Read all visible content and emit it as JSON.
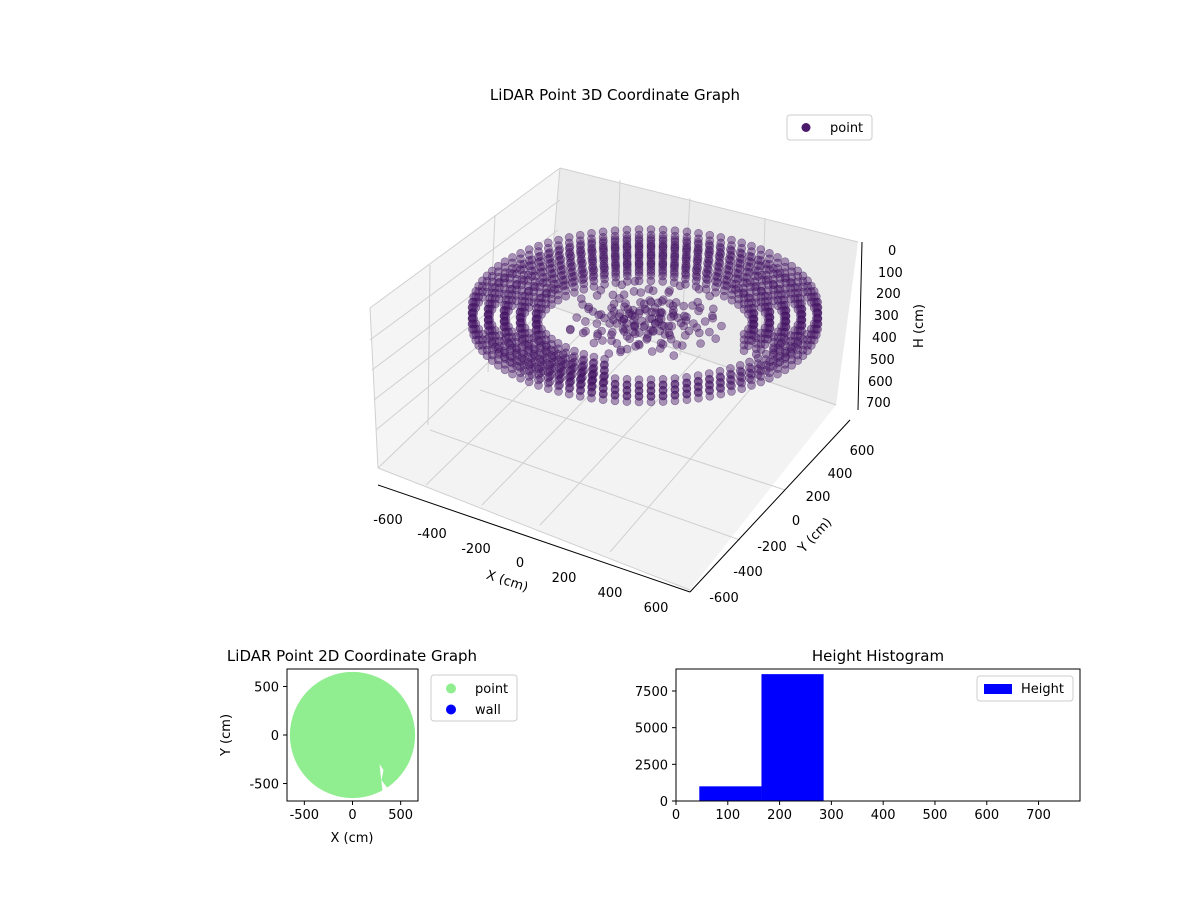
{
  "chart_data": [
    {
      "type": "scatter",
      "title": "LiDAR Point 3D Coordinate Graph",
      "projection": "3d",
      "xlabel": "X (cm)",
      "ylabel": "Y (cm)",
      "zlabel": "H (cm)",
      "x_ticks": [
        -600,
        -400,
        -200,
        0,
        200,
        400,
        600
      ],
      "y_ticks": [
        -600,
        -400,
        -200,
        0,
        200,
        400,
        600
      ],
      "z_ticks": [
        0,
        100,
        200,
        300,
        400,
        500,
        600,
        700
      ],
      "xlim": [
        -650,
        650
      ],
      "ylim": [
        -650,
        650
      ],
      "zlim": [
        760,
        0
      ],
      "z_inverted": true,
      "grid": true,
      "legend": {
        "position": "top-right",
        "entries": [
          {
            "label": "point",
            "color": "#4b1a6b"
          }
        ]
      },
      "series": [
        {
          "name": "point",
          "color": "#4b1a6b",
          "description_of_shape": "ring-shaped cloud of points (radius ~650 cm) at heights ~180-300 cm with a denser central cluster"
        }
      ],
      "sample_points": [
        {
          "x": 650,
          "y": 0,
          "h": 200
        },
        {
          "x": 0,
          "y": 650,
          "h": 200
        },
        {
          "x": -650,
          "y": 0,
          "h": 200
        },
        {
          "x": 0,
          "y": -650,
          "h": 200
        },
        {
          "x": 460,
          "y": 460,
          "h": 250
        },
        {
          "x": -460,
          "y": 460,
          "h": 250
        },
        {
          "x": -460,
          "y": -460,
          "h": 250
        },
        {
          "x": 460,
          "y": -460,
          "h": 250
        },
        {
          "x": 0,
          "y": 0,
          "h": 220
        },
        {
          "x": 100,
          "y": 50,
          "h": 260
        },
        {
          "x": -80,
          "y": -60,
          "h": 240
        },
        {
          "x": 300,
          "y": -300,
          "h": 300
        }
      ]
    },
    {
      "type": "scatter",
      "title": "LiDAR Point 2D Coordinate Graph",
      "xlabel": "X (cm)",
      "ylabel": "Y (cm)",
      "x_ticks": [
        -500,
        0,
        500
      ],
      "y_ticks": [
        -500,
        0,
        500
      ],
      "xlim": [
        -680,
        680
      ],
      "ylim": [
        -680,
        680
      ],
      "legend": {
        "position": "outside-right",
        "entries": [
          {
            "label": "point",
            "color": "#90ee90"
          },
          {
            "label": "wall",
            "color": "#0000ff"
          }
        ]
      },
      "series": [
        {
          "name": "point",
          "color": "#90ee90",
          "shape": "filled disk of radius ~650 cm centered at (0,0)"
        },
        {
          "name": "wall",
          "color": "#0000ff",
          "values": []
        }
      ]
    },
    {
      "type": "bar",
      "title": "Height Histogram",
      "x_ticks": [
        0,
        100,
        200,
        300,
        400,
        500,
        600,
        700
      ],
      "y_ticks": [
        0,
        2500,
        5000,
        7500
      ],
      "xlim": [
        0,
        780
      ],
      "ylim": [
        0,
        9000
      ],
      "legend": {
        "position": "top-right",
        "entries": [
          {
            "label": "Height",
            "color": "#0000ff"
          }
        ]
      },
      "series": [
        {
          "name": "Height",
          "color": "#0000ff",
          "bins": [
            {
              "x0": 45,
              "x1": 165,
              "count": 1000
            },
            {
              "x0": 165,
              "x1": 285,
              "count": 8650
            },
            {
              "x0": 285,
              "x1": 405,
              "count": 0
            },
            {
              "x0": 405,
              "x1": 525,
              "count": 0
            },
            {
              "x0": 525,
              "x1": 645,
              "count": 0
            },
            {
              "x0": 645,
              "x1": 765,
              "count": 0
            }
          ]
        }
      ]
    }
  ]
}
